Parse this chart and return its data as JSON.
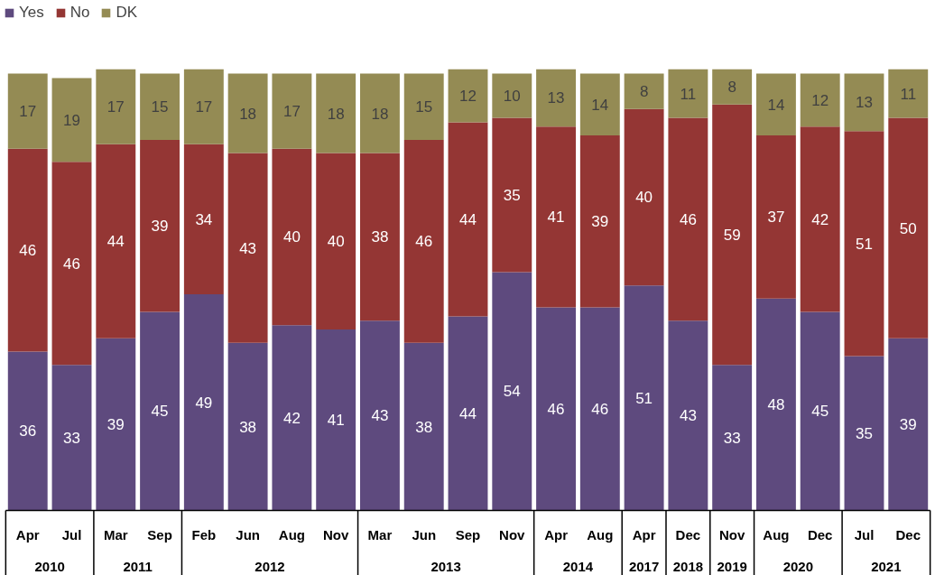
{
  "chart_data": {
    "type": "bar",
    "stacked": true,
    "data_labels": true,
    "legend": "top left",
    "tick_labels": "x",
    "ylim": [
      0,
      100
    ],
    "categories": [
      "Apr",
      "Jul",
      "Mar",
      "Sep",
      "Feb",
      "Jun",
      "Aug",
      "Nov",
      "Mar",
      "Jun",
      "Sep",
      "Nov",
      "Apr",
      "Aug",
      "Apr",
      "Dec",
      "Nov",
      "Aug",
      "Dec",
      "Jul",
      "Dec"
    ],
    "annotations": [
      "2010",
      "2011",
      "2012",
      "2013",
      "2014",
      "2017",
      "2018",
      "2019",
      "2020",
      "2021"
    ],
    "series": [
      {
        "name": "Yes",
        "color": "#5e4a7e",
        "values": [
          36,
          33,
          39,
          45,
          49,
          38,
          42,
          41,
          43,
          38,
          44,
          54,
          46,
          46,
          51,
          43,
          33,
          48,
          45,
          35,
          39
        ]
      },
      {
        "name": "No",
        "color": "#943634",
        "values": [
          46,
          46,
          44,
          39,
          34,
          43,
          40,
          40,
          38,
          46,
          44,
          35,
          41,
          39,
          40,
          46,
          59,
          37,
          42,
          51,
          50
        ]
      },
      {
        "name": "DK",
        "color": "#948b54",
        "values": [
          17,
          19,
          17,
          15,
          17,
          18,
          17,
          18,
          18,
          15,
          12,
          10,
          13,
          14,
          8,
          11,
          8,
          14,
          12,
          13,
          11
        ]
      }
    ]
  }
}
